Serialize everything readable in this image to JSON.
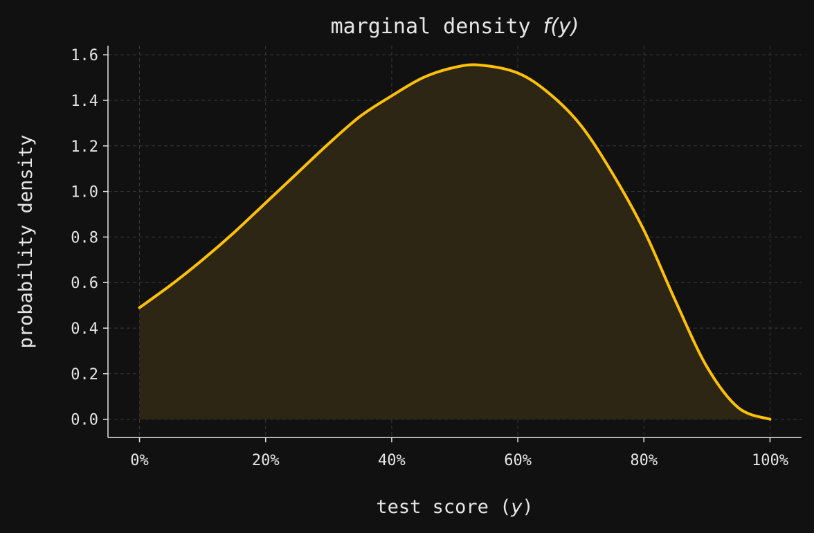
{
  "colors": {
    "background": "#111111",
    "line": "#ffc107",
    "fill": "#2e2614",
    "text": "#e6e6e6",
    "grid": "#3a3a3a"
  },
  "chart_data": {
    "type": "area",
    "title": "marginal density",
    "title_math": "f(y)",
    "xlabel": "test score (",
    "xlabel_math": "y",
    "xlabel_suffix": ")",
    "ylabel": "probability density",
    "xlim": [
      -0.05,
      1.05
    ],
    "ylim": [
      -0.08,
      1.64
    ],
    "xticks": [
      0,
      0.2,
      0.4,
      0.6,
      0.8,
      1.0
    ],
    "xtick_labels": [
      "0%",
      "20%",
      "40%",
      "60%",
      "80%",
      "100%"
    ],
    "yticks": [
      0,
      0.2,
      0.4,
      0.6,
      0.8,
      1.0,
      1.2,
      1.4,
      1.6
    ],
    "ytick_labels": [
      "0.0",
      "0.2",
      "0.4",
      "0.6",
      "0.8",
      "1.0",
      "1.2",
      "1.4",
      "1.6"
    ],
    "grid": true,
    "series": [
      {
        "x": [
          0.0,
          0.05,
          0.1,
          0.15,
          0.2,
          0.25,
          0.3,
          0.35,
          0.4,
          0.45,
          0.5,
          0.54,
          0.6,
          0.65,
          0.7,
          0.75,
          0.8,
          0.85,
          0.9,
          0.95,
          1.0
        ],
        "y": [
          0.49,
          0.59,
          0.7,
          0.82,
          0.95,
          1.08,
          1.21,
          1.33,
          1.42,
          1.5,
          1.545,
          1.555,
          1.52,
          1.43,
          1.29,
          1.08,
          0.83,
          0.52,
          0.23,
          0.05,
          0.0
        ]
      }
    ]
  }
}
